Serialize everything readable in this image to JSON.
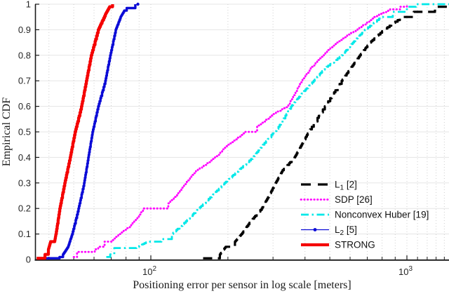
{
  "figure": {
    "xlabel": "Positioning error per sensor in log scale [meters]",
    "ylabel": "Empirical CDF"
  },
  "chart_data": {
    "type": "line",
    "subtype": "empirical_cdf_steps",
    "title": "",
    "xlabel": "Positioning error per sensor in log scale [meters]",
    "ylabel": "Empirical CDF",
    "xscale": "log",
    "xlim": [
      35.3,
      1460
    ],
    "ylim": [
      0,
      1
    ],
    "grid": true,
    "legend_position": "lower right",
    "y_ticks": [
      {
        "value": 0,
        "label": "0"
      },
      {
        "value": 0.1,
        "label": "0.1"
      },
      {
        "value": 0.2,
        "label": "0.2"
      },
      {
        "value": 0.3,
        "label": "0.3"
      },
      {
        "value": 0.4,
        "label": "0.4"
      },
      {
        "value": 0.5,
        "label": "0.5"
      },
      {
        "value": 0.6,
        "label": "0.6"
      },
      {
        "value": 0.7,
        "label": "0.7"
      },
      {
        "value": 0.8,
        "label": "0.8"
      },
      {
        "value": 0.9,
        "label": "0.9"
      },
      {
        "value": 1,
        "label": "1"
      }
    ],
    "x_major_ticks": [
      {
        "value": 100,
        "base": "10",
        "exp": "2"
      },
      {
        "value": 1000,
        "base": "10",
        "exp": "3"
      }
    ],
    "x_minor_ticks": [
      40,
      50,
      60,
      70,
      80,
      90,
      200,
      300,
      400,
      500,
      600,
      700,
      800,
      900,
      1100,
      1200,
      1300,
      1400
    ],
    "series": [
      {
        "name": "L_1 [2]",
        "label_main": "L",
        "label_sub": "1",
        "label_rest": " [2]",
        "color": "#000000",
        "style": "dashed",
        "width": 3.2,
        "points": [
          [
            160,
            0.005
          ],
          [
            186,
            0.02
          ],
          [
            196,
            0.05
          ],
          [
            213,
            0.07
          ],
          [
            226,
            0.1
          ],
          [
            245,
            0.15
          ],
          [
            271,
            0.2
          ],
          [
            289,
            0.25
          ],
          [
            307,
            0.3
          ],
          [
            327,
            0.35
          ],
          [
            364,
            0.4
          ],
          [
            388,
            0.45
          ],
          [
            413,
            0.5
          ],
          [
            478,
            0.6
          ],
          [
            556,
            0.7
          ],
          [
            603,
            0.75
          ],
          [
            655,
            0.8
          ],
          [
            716,
            0.85
          ],
          [
            812,
            0.9
          ],
          [
            957,
            0.95
          ],
          [
            1064,
            0.97
          ],
          [
            1287,
            0.99
          ],
          [
            1440,
            0.995
          ]
        ]
      },
      {
        "name": "SDP [26]",
        "label_main": "SDP [26]",
        "label_sub": "",
        "label_rest": "",
        "color": "#ff00ff",
        "style": "dotted",
        "width": 2.8,
        "points": [
          [
            50,
            0.01
          ],
          [
            51.5,
            0.03
          ],
          [
            56.7,
            0.03
          ],
          [
            60.4,
            0.04
          ],
          [
            62.3,
            0.05
          ],
          [
            66,
            0.07
          ],
          [
            70,
            0.07
          ],
          [
            75.3,
            0.1
          ],
          [
            82.8,
            0.13
          ],
          [
            88,
            0.16
          ],
          [
            93.9,
            0.2
          ],
          [
            117,
            0.22
          ],
          [
            128,
            0.26
          ],
          [
            137,
            0.3
          ],
          [
            150,
            0.35
          ],
          [
            178,
            0.4
          ],
          [
            200,
            0.45
          ],
          [
            234,
            0.5
          ],
          [
            260,
            0.52
          ],
          [
            300,
            0.57
          ],
          [
            342,
            0.6
          ],
          [
            365,
            0.65
          ],
          [
            388,
            0.7
          ],
          [
            421,
            0.75
          ],
          [
            468,
            0.8
          ],
          [
            532,
            0.85
          ],
          [
            631,
            0.9
          ],
          [
            743,
            0.95
          ],
          [
            860,
            0.98
          ],
          [
            940,
            0.99
          ],
          [
            1000,
            1.0
          ]
        ]
      },
      {
        "name": "Nonconvex Huber [19]",
        "label_main": "Nonconvex Huber [19]",
        "label_sub": "",
        "label_rest": "",
        "color": "#00e8e8",
        "style": "dashdot",
        "width": 2.8,
        "points": [
          [
            67,
            0.01
          ],
          [
            69.4,
            0.02
          ],
          [
            72,
            0.045
          ],
          [
            87,
            0.045
          ],
          [
            96.9,
            0.07
          ],
          [
            110,
            0.08
          ],
          [
            120.8,
            0.1
          ],
          [
            137,
            0.15
          ],
          [
            153.6,
            0.2
          ],
          [
            173,
            0.25
          ],
          [
            194,
            0.3
          ],
          [
            220,
            0.35
          ],
          [
            250,
            0.4
          ],
          [
            274,
            0.45
          ],
          [
            315,
            0.52
          ],
          [
            353,
            0.6
          ],
          [
            388,
            0.65
          ],
          [
            432,
            0.7
          ],
          [
            478,
            0.75
          ],
          [
            556,
            0.8
          ],
          [
            615,
            0.85
          ],
          [
            685,
            0.9
          ],
          [
            792,
            0.95
          ],
          [
            881,
            0.97
          ],
          [
            1000,
            0.99
          ],
          [
            1085,
            1.0
          ],
          [
            1460,
            1.0
          ]
        ]
      },
      {
        "name": "L_2 [5]",
        "label_main": "L",
        "label_sub": "2",
        "label_rest": " [5]",
        "color": "#0b0bd6",
        "style": "solid-marker",
        "width": 3.4,
        "marker_end": [
          89,
          1.0
        ],
        "points": [
          [
            38.8,
            0.005
          ],
          [
            44,
            0.01
          ],
          [
            45.4,
            0.02
          ],
          [
            47.5,
            0.05
          ],
          [
            49.3,
            0.1
          ],
          [
            52.2,
            0.2
          ],
          [
            54.9,
            0.3
          ],
          [
            57,
            0.4
          ],
          [
            59.2,
            0.5
          ],
          [
            62.3,
            0.6
          ],
          [
            66.4,
            0.7
          ],
          [
            69.4,
            0.8
          ],
          [
            72.9,
            0.9
          ],
          [
            76.2,
            0.95
          ],
          [
            78.8,
            0.975
          ],
          [
            80.5,
            0.985
          ],
          [
            85.3,
            0.985
          ],
          [
            87,
            1.0
          ]
        ]
      },
      {
        "name": "STRONG",
        "label_main": "STRONG",
        "label_sub": "",
        "label_rest": "",
        "color": "#f40000",
        "style": "solid",
        "width": 4.2,
        "points": [
          [
            35.8,
            0.005
          ],
          [
            38.6,
            0.02
          ],
          [
            39.8,
            0.04
          ],
          [
            40.6,
            0.07
          ],
          [
            42.1,
            0.07
          ],
          [
            42.6,
            0.1
          ],
          [
            44.1,
            0.2
          ],
          [
            46.1,
            0.3
          ],
          [
            48.4,
            0.4
          ],
          [
            50.6,
            0.5
          ],
          [
            53.6,
            0.6
          ],
          [
            56,
            0.7
          ],
          [
            58.5,
            0.8
          ],
          [
            62.3,
            0.9
          ],
          [
            66.4,
            0.96
          ],
          [
            69,
            0.99
          ],
          [
            70.9,
            1.0
          ]
        ]
      }
    ],
    "grid_colors": {
      "horizontal": "#e5e5e5",
      "vertical": "#cfcfcf",
      "axis": "#1a1a1a"
    }
  }
}
